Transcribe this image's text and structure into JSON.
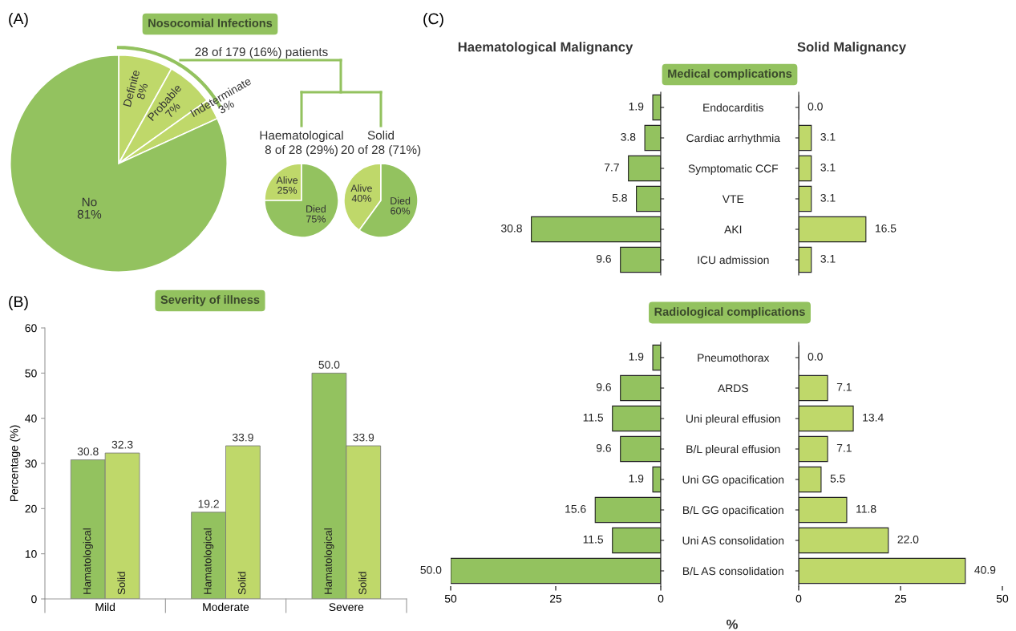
{
  "chart_data": [
    {
      "type": "pie",
      "title": "Nosocomial Infections",
      "annotations": [
        "(A)",
        "28 of 179 (16%) patients"
      ],
      "categories": [
        "Definite",
        "Probable",
        "Indeterminate",
        "No"
      ],
      "values": [
        8,
        7,
        3,
        81
      ],
      "value_labels": [
        "8%",
        "7%",
        "3%",
        "81%"
      ],
      "colors": [
        "#bfd86a",
        "#bfd86a",
        "#bfd86a",
        "#93c25f"
      ]
    },
    {
      "type": "pie",
      "title": "Haematological",
      "subtitle": "8 of 28 (29%)",
      "categories": [
        "Alive",
        "Died"
      ],
      "values": [
        25,
        75
      ],
      "value_labels": [
        "25%",
        "75%"
      ],
      "colors": [
        "#bfd86a",
        "#93c25f"
      ]
    },
    {
      "type": "pie",
      "title": "Solid",
      "subtitle": "20 of 28 (71%)",
      "categories": [
        "Alive",
        "Died"
      ],
      "values": [
        40,
        60
      ],
      "value_labels": [
        "40%",
        "60%"
      ],
      "colors": [
        "#bfd86a",
        "#93c25f"
      ]
    },
    {
      "type": "bar",
      "title": "Severity of illness",
      "annotations": [
        "(B)"
      ],
      "ylabel": "Percentage (%)",
      "categories": [
        "Mild",
        "Moderate",
        "Severe"
      ],
      "series": [
        {
          "name": "Hamatological",
          "color": "#93c25f",
          "values": [
            30.8,
            19.2,
            50.0
          ],
          "value_labels": [
            "30.8",
            "19.2",
            "50.0"
          ]
        },
        {
          "name": "Solid",
          "color": "#bfd86a",
          "values": [
            32.3,
            33.9,
            33.9
          ],
          "value_labels": [
            "32.3",
            "33.9",
            "33.9"
          ]
        }
      ],
      "ylim": [
        0,
        60
      ],
      "yticks": [
        0,
        10,
        20,
        30,
        40,
        50,
        60
      ]
    },
    {
      "type": "bar",
      "orientation": "horizontal",
      "title": "Haematological Malignancy",
      "subtitle": "Medical complications",
      "annotations": [
        "(C)"
      ],
      "categories": [
        "Endocarditis",
        "Cardiac arrhythmia",
        "Symptomatic CCF",
        "VTE",
        "AKI",
        "ICU admission"
      ],
      "values": [
        1.9,
        3.8,
        7.7,
        5.8,
        30.8,
        9.6
      ],
      "value_labels": [
        "1.9",
        "3.8",
        "7.7",
        "5.8",
        "30.8",
        "9.6"
      ],
      "color": "#93c25f",
      "xlim": [
        50,
        0
      ],
      "tick_labels": "y"
    },
    {
      "type": "bar",
      "orientation": "horizontal",
      "title": "Solid Malignancy",
      "categories": [
        null,
        null,
        null,
        null,
        null,
        null
      ],
      "values": [
        0.0,
        3.1,
        3.1,
        3.1,
        16.5,
        3.1
      ],
      "value_labels": [
        "0.0",
        "3.1",
        "3.1",
        "3.1",
        "16.5",
        "3.1"
      ],
      "color": "#bfd86a",
      "xlim": [
        0,
        50
      ],
      "tick_labels": false
    },
    {
      "type": "bar",
      "orientation": "horizontal",
      "subtitle": "Radiological complications",
      "xlabel": "%",
      "categories": [
        "Pneumothorax",
        "ARDS",
        "Uni pleural effusion",
        "B/L pleural effusion",
        "Uni GG opacification",
        "B/L GG opacification",
        "Uni AS consolidation",
        "B/L AS consolidation"
      ],
      "values": [
        1.9,
        9.6,
        11.5,
        9.6,
        1.9,
        15.6,
        11.5,
        50.0
      ],
      "value_labels": [
        "1.9",
        "9.6",
        "11.5",
        "9.6",
        "1.9",
        "15.6",
        "11.5",
        "50.0"
      ],
      "color": "#93c25f",
      "xlim": [
        50,
        0
      ],
      "xticks": [
        50,
        25,
        0
      ]
    },
    {
      "type": "bar",
      "orientation": "horizontal",
      "categories": [
        null,
        null,
        null,
        null,
        null,
        null,
        null,
        null
      ],
      "values": [
        0.0,
        7.1,
        13.4,
        7.1,
        5.5,
        11.8,
        22.0,
        40.9
      ],
      "value_labels": [
        "0.0",
        "7.1",
        "13.4",
        "7.1",
        "5.5",
        "11.8",
        "22.0",
        "40.9"
      ],
      "color": "#bfd86a",
      "xlim": [
        0,
        50
      ],
      "xticks": [
        0,
        25,
        50
      ],
      "tick_labels": "x"
    }
  ]
}
